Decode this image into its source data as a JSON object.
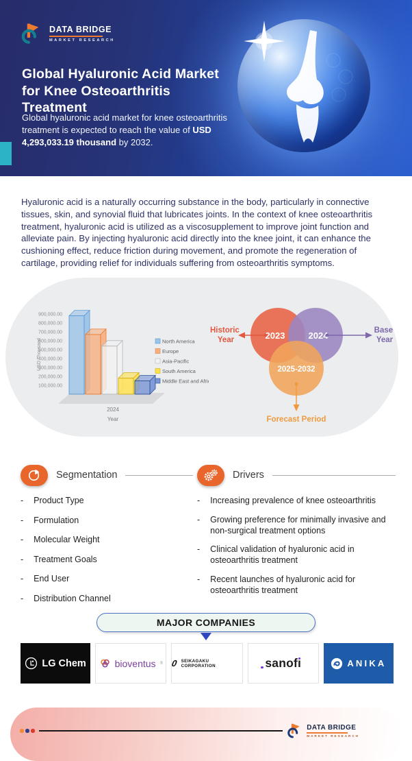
{
  "header": {
    "brand": {
      "name": "DATA BRIDGE",
      "tagline": "MARKET RESEARCH"
    },
    "title": "Global Hyaluronic Acid Market for Knee Osteoarthritis Treatment",
    "subtitle_pre": "Global hyaluronic acid market for knee osteoarthritis treatment is expected to reach the value of ",
    "subtitle_bold": "USD 4,293,033.19 thousand",
    "subtitle_post": " by 2032."
  },
  "intro": "Hyaluronic acid is a naturally occurring substance in the body, particularly in connective tissues, skin, and synovial fluid that lubricates joints. In the context of knee osteoarthritis treatment, hyaluronic acid is utilized as a viscosupplement to improve joint function and alleviate pain. By injecting hyaluronic acid directly into the knee joint, it can enhance the cushioning effect, reduce friction during movement, and promote the regeneration of cartilage, providing relief for individuals suffering from osteoarthritis symptoms.",
  "chart_data": {
    "type": "bar",
    "style": "3d-column",
    "title": "",
    "categories": [
      "2024"
    ],
    "xlabel": "Year",
    "ylabel": "USD Thousand",
    "ylim": [
      0,
      900000
    ],
    "yticks": [
      "900,000.00",
      "800,000.00",
      "700,000.00",
      "600,000.00",
      "500,000.00",
      "400,000.00",
      "300,000.00",
      "200,000.00",
      "100,000.00"
    ],
    "legend_position": "right",
    "series": [
      {
        "name": "North America",
        "values": [
          880000
        ],
        "color": "#9dc3e6",
        "edge": "#5b9bd5"
      },
      {
        "name": "Europe",
        "values": [
          670000
        ],
        "color": "#f5b183",
        "edge": "#ed7d31"
      },
      {
        "name": "Asia-Pacific",
        "values": [
          540000
        ],
        "color": "#f2f2f2",
        "edge": "#b7b7b7"
      },
      {
        "name": "South America",
        "values": [
          180000
        ],
        "color": "#ffe04d",
        "edge": "#d0b016"
      },
      {
        "name": "Middle East and Africa",
        "values": [
          150000
        ],
        "color": "#7b96d6",
        "edge": "#2f5597"
      }
    ]
  },
  "timeline_diagram": {
    "historic": {
      "year": "2023",
      "label_lines": [
        "Historic",
        "Year"
      ],
      "circle_color": "#e8694d",
      "label_color": "#e25840"
    },
    "base": {
      "year": "2024",
      "label_lines": [
        "Base",
        "Year"
      ],
      "circle_color": "#9c86c1",
      "label_color": "#7d68ab"
    },
    "forecast": {
      "year": "2025-2032",
      "label_lines": [
        "Forecast Period"
      ],
      "circle_color": "#f0a45a",
      "label_color": "#f09a3e"
    }
  },
  "segmentation": {
    "heading": "Segmentation",
    "items": [
      "Product Type",
      "Formulation",
      "Molecular Weight",
      "Treatment Goals",
      "End User",
      "Distribution Channel"
    ]
  },
  "drivers": {
    "heading": "Drivers",
    "items": [
      "Increasing prevalence of knee osteoarthritis",
      "Growing preference for minimally invasive and non-surgical treatment options",
      "Clinical validation of hyaluronic acid in osteoarthritis treatment",
      "Recent launches of hyaluronic acid for osteoarthritis treatment"
    ]
  },
  "companies": {
    "heading": "MAJOR COMPANIES",
    "items": [
      {
        "name": "LG Chem"
      },
      {
        "name": "bioventus",
        "mark": "®"
      },
      {
        "name": "SEIKAGAKU CORPORATION"
      },
      {
        "name": "sanofi",
        "display": "sanofı"
      },
      {
        "name": "ANIKA"
      }
    ]
  },
  "footer": {
    "brand": {
      "name": "DATA BRIDGE",
      "tagline": "MARKET RESEARCH"
    }
  },
  "ui": {
    "bullet": "-"
  },
  "colors": {
    "header_navy": "#272c6a",
    "header_blue": "#2c5ecf",
    "teal_accent": "#2cb4c6",
    "accent_orange": "#e8662c",
    "companies_border_blue": "#4a72c8",
    "anika_blue": "#1e5ba8",
    "lg_black": "#0c0c0c",
    "bioventus_purple": "#7a3f9d",
    "footer_pink": "#f4aea8"
  }
}
